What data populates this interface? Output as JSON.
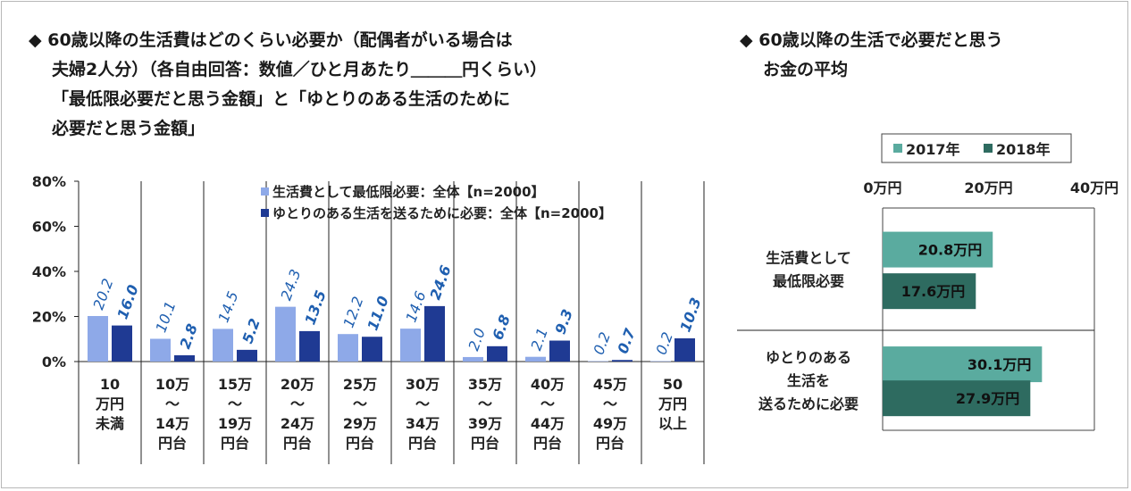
{
  "left": {
    "heading": [
      "◆ 60歳以降の生活費はどのくらい必要か（配偶者がいる場合は",
      "夫婦2人分）（各自由回答：数値／ひと月あたり＿＿＿円くらい）",
      "「最低限必要だと思う金額」と「ゆとりのある生活のために",
      "必要だと思う金額」"
    ]
  },
  "right": {
    "heading": [
      "◆ 60歳以降の生活で必要だと思う",
      "お金の平均"
    ]
  },
  "chart_data": [
    {
      "type": "bar",
      "categories": [
        "10\n万円\n未満",
        "10万\n～\n14万\n円台",
        "15万\n～\n19万\n円台",
        "20万\n～\n24万\n円台",
        "25万\n～\n29万\n円台",
        "30万\n～\n34万\n円台",
        "35万\n～\n39万\n円台",
        "40万\n～\n44万\n円台",
        "45万\n～\n49万\n円台",
        "50\n万円\n以上"
      ],
      "series": [
        {
          "name": "生活費として最低限必要：全体【n=2000】",
          "values": [
            20.2,
            10.1,
            14.5,
            24.3,
            12.2,
            14.6,
            2.0,
            2.1,
            0.2,
            0.2
          ],
          "labels": [
            "20.2",
            "10.1",
            "14.5",
            "24.3",
            "12.2",
            "14.6",
            "2.0",
            "2.1",
            "0.2",
            "0.2"
          ],
          "color": "#8ea9e8"
        },
        {
          "name": "ゆとりのある生活を送るために必要：全体【n=2000】",
          "values": [
            16.0,
            2.8,
            5.2,
            13.5,
            11.0,
            24.6,
            6.8,
            9.3,
            0.7,
            10.3
          ],
          "labels": [
            "16.0",
            "2.8",
            "5.2",
            "13.5",
            "11.0",
            "24.6",
            "6.8",
            "9.3",
            "0.7",
            "10.3"
          ],
          "color": "#1f3a93"
        }
      ],
      "yticks": [
        "0%",
        "20%",
        "40%",
        "60%",
        "80%"
      ],
      "ylim": [
        0,
        80
      ],
      "label_color": "#1f5fb0",
      "grid": false,
      "legend_position": "top-right"
    },
    {
      "type": "bar",
      "orientation": "horizontal",
      "categories": [
        "生活費として\n最低限必要",
        "ゆとりのある\n生活を\n送るために必要"
      ],
      "series": [
        {
          "name": "2017年",
          "values": [
            20.8,
            30.1
          ],
          "labels": [
            "20.8万円",
            "30.1万円"
          ],
          "color": "#5aab9f"
        },
        {
          "name": "2018年",
          "values": [
            17.6,
            27.9
          ],
          "labels": [
            "17.6万円",
            "27.9万円"
          ],
          "color": "#2e6b60"
        }
      ],
      "xticks": [
        "0万円",
        "20万円",
        "40万円"
      ],
      "xlim": [
        0,
        40
      ],
      "grid": false,
      "legend_position": "top"
    }
  ]
}
